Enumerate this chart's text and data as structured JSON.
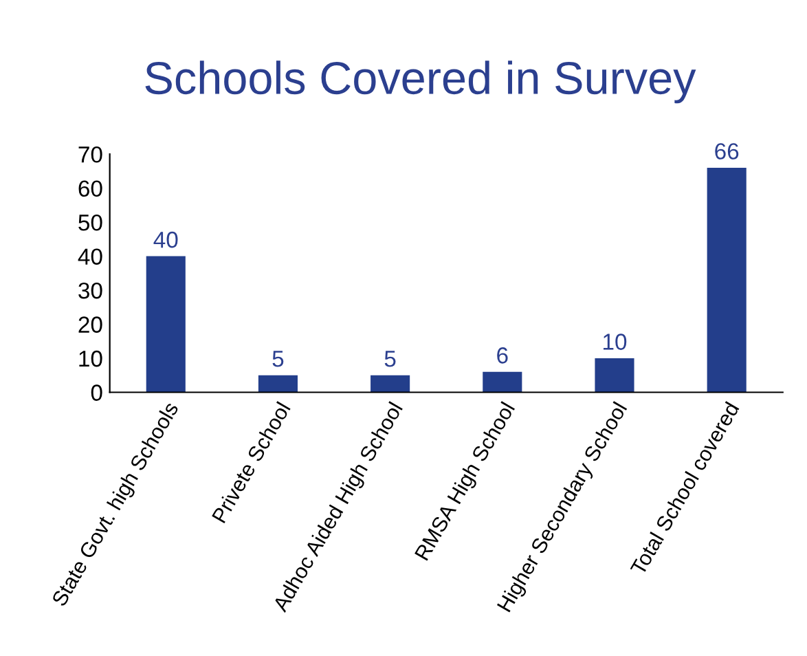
{
  "chart_data": {
    "type": "bar",
    "title": "Schools Covered in Survey",
    "categories": [
      "State Govt. high Schools",
      "Privete School",
      "Adhoc Aided High School",
      "RMSA High School",
      "Higher Secondary School",
      "Total School covered"
    ],
    "values": [
      40,
      5,
      5,
      6,
      10,
      66
    ],
    "color": "#233e8b",
    "ylim": [
      0,
      70
    ],
    "yticks": [
      0,
      10,
      20,
      30,
      40,
      50,
      60,
      70
    ],
    "grid": false,
    "data_labels": true
  }
}
